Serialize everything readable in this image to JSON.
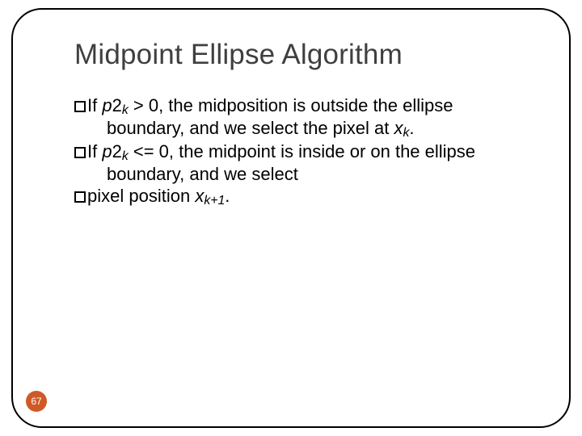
{
  "title": "Midpoint Ellipse Algorithm",
  "lines": {
    "l1a": "If ",
    "l1b": "p",
    "l1c": "2",
    "l1d": "k",
    "l1e": " > 0, the midposition is outside the ellipse",
    "l2": "boundary, and we select the pixel at ",
    "l2b": "x",
    "l2c": "k",
    "l2d": ".",
    "l3a": "If ",
    "l3b": "p",
    "l3c": "2",
    "l3d": "k",
    "l3e": " <= 0, the midpoint is inside or on the ellipse",
    "l4": "boundary, and we select",
    "l5a": "pixel position ",
    "l5b": "x",
    "l5c": "k+1",
    "l5d": "."
  },
  "page_number": "67",
  "colors": {
    "pagenum_bg": "#cf5a27",
    "pagenum_fg": "#ffffff",
    "title_color": "#3f3f3f",
    "body_color": "#000000",
    "border_color": "#000000"
  }
}
